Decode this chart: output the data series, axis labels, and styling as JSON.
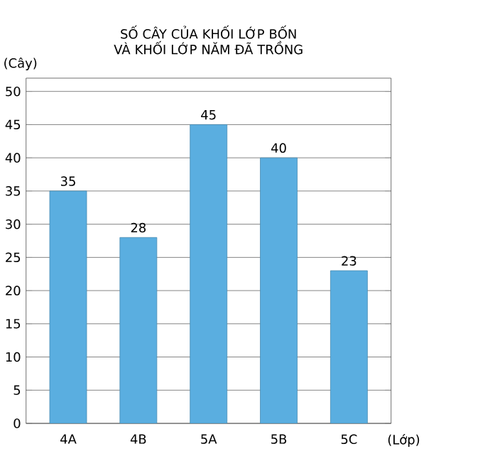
{
  "chart_data": {
    "type": "bar",
    "title": "SỐ CÂY CỦA KHỐI LỚP BỐN VÀ KHỐI LỚP NĂM ĐÃ TRỒNG",
    "xlabel": "(Lớp)",
    "ylabel": "(Cây)",
    "categories": [
      "4A",
      "4B",
      "5A",
      "5B",
      "5C"
    ],
    "values": [
      35,
      28,
      45,
      40,
      23
    ],
    "color": "#5aaee0",
    "ylim": [
      0,
      52
    ],
    "yticks": [
      0,
      5,
      10,
      15,
      20,
      25,
      30,
      35,
      40,
      45,
      50
    ],
    "grid": "y",
    "data_labels": true
  }
}
